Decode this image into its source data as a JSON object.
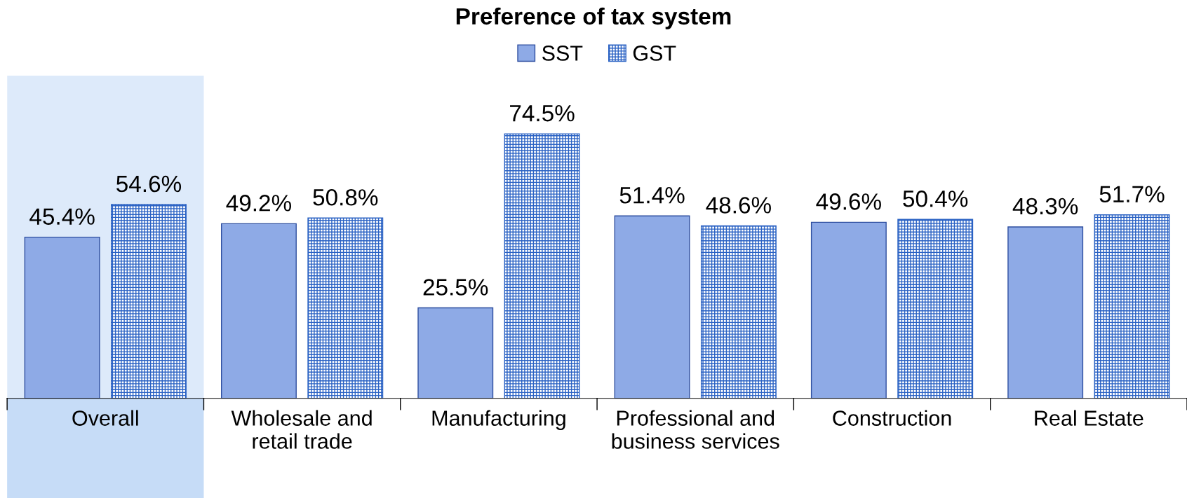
{
  "chart_data": {
    "type": "bar",
    "title": "Preference of tax system",
    "categories": [
      "Overall",
      "Wholesale and\nretail trade",
      "Manufacturing",
      "Professional and\nbusiness services",
      "Construction",
      "Real Estate"
    ],
    "series": [
      {
        "name": "SST",
        "color": "#8eaae6",
        "values": [
          45.4,
          49.2,
          25.5,
          51.4,
          49.6,
          48.3
        ],
        "value_labels": [
          "45.4%",
          "49.2%",
          "25.5%",
          "51.4%",
          "49.6%",
          "48.3%"
        ]
      },
      {
        "name": "GST",
        "color": "#2a62c4",
        "values": [
          54.6,
          50.8,
          74.5,
          48.6,
          50.4,
          51.7
        ],
        "value_labels": [
          "54.6%",
          "50.8%",
          "74.5%",
          "48.6%",
          "50.4%",
          "51.7%"
        ]
      }
    ],
    "bands": [
      {
        "axis": "x",
        "from": "Overall",
        "to": "Overall",
        "color": "#c6dcf7"
      }
    ],
    "legend": "top",
    "grid": false
  }
}
